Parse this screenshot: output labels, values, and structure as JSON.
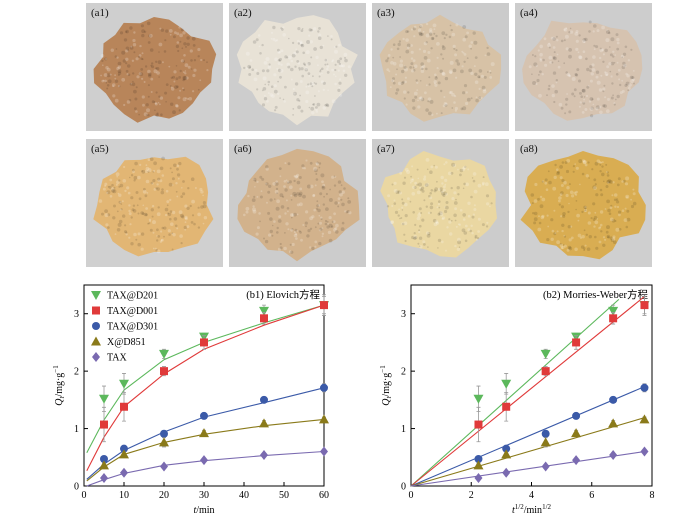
{
  "photos": [
    {
      "label": "(a1)",
      "bg": "#cfcfcf",
      "pile": "#b8855a"
    },
    {
      "label": "(a2)",
      "bg": "#cdcdcd",
      "pile": "#e8e2d6"
    },
    {
      "label": "(a3)",
      "bg": "#cbcbcb",
      "pile": "#d7c2a6"
    },
    {
      "label": "(a4)",
      "bg": "#cdcdcd",
      "pile": "#d6c3b0"
    },
    {
      "label": "(a5)",
      "bg": "#d0d0d0",
      "pile": "#e2b674"
    },
    {
      "label": "(a6)",
      "bg": "#cccccc",
      "pile": "#d2b28c"
    },
    {
      "label": "(a7)",
      "bg": "#cccccc",
      "pile": "#ead7a2"
    },
    {
      "label": "(a8)",
      "bg": "#cfcfcf",
      "pile": "#d9ad52"
    }
  ],
  "chart_data": [
    {
      "type": "line",
      "title": "(b1) Elovich方程",
      "xlabel_italic": "t",
      "xlabel_rest": "/min",
      "ylabel_italic": "Q",
      "ylabel_sub": "t",
      "ylabel_rest": "/mg·g",
      "ylabel_sup": "−1",
      "xlim": [
        0,
        60
      ],
      "ylim": [
        0,
        3.5
      ],
      "xticks": [
        "0",
        "10",
        "20",
        "30",
        "40",
        "50",
        "60"
      ],
      "xtick_values": [
        0,
        10,
        20,
        30,
        40,
        50,
        60
      ],
      "yticks": [
        "0",
        "1",
        "2",
        "3"
      ],
      "ytick_values": [
        0,
        1,
        2,
        3
      ],
      "x": [
        5,
        10,
        20,
        30,
        45,
        60
      ],
      "series": [
        {
          "name": "TAX@D201",
          "marker": "triangle-down",
          "color": "#5cb85c",
          "values": [
            1.52,
            1.78,
            2.3,
            2.6,
            3.05,
            3.15
          ],
          "err": [
            0.22,
            0.18,
            0.08,
            0.06,
            0.1,
            0.18
          ],
          "fit": [
            1.15,
            1.67,
            2.2,
            2.5,
            2.84,
            3.15
          ]
        },
        {
          "name": "TAX@D001",
          "marker": "square",
          "color": "#e03a3a",
          "values": [
            1.07,
            1.38,
            2.0,
            2.5,
            2.92,
            3.15
          ],
          "err": [
            0.3,
            0.25,
            0.08,
            0.12,
            0.1,
            0.15
          ],
          "fit": [
            0.85,
            1.38,
            1.95,
            2.38,
            2.8,
            3.15
          ]
        },
        {
          "name": "TAX@D301",
          "marker": "circle",
          "color": "#3b5aa8",
          "values": [
            0.47,
            0.65,
            0.91,
            1.22,
            1.5,
            1.71
          ],
          "err": [
            0.04,
            0.04,
            0.04,
            0.04,
            0.05,
            0.07
          ],
          "fit": [
            0.38,
            0.62,
            0.94,
            1.2,
            1.45,
            1.71
          ]
        },
        {
          "name": "X@D851",
          "marker": "triangle-up",
          "color": "#8a7a1a",
          "values": [
            0.36,
            0.55,
            0.76,
            0.92,
            1.09,
            1.16
          ],
          "err": [
            0.04,
            0.04,
            0.08,
            0.05,
            0.05,
            0.04
          ],
          "fit": [
            0.33,
            0.55,
            0.76,
            0.9,
            1.05,
            1.16
          ]
        },
        {
          "name": "TAX",
          "marker": "diamond",
          "color": "#7a6ab0",
          "values": [
            0.14,
            0.23,
            0.34,
            0.45,
            0.54,
            0.6
          ],
          "err": [
            0.02,
            0.02,
            0.02,
            0.03,
            0.03,
            0.03
          ],
          "fit": [
            0.11,
            0.22,
            0.36,
            0.44,
            0.53,
            0.6
          ]
        }
      ],
      "legend": "top-left"
    },
    {
      "type": "line",
      "title": "(b2) Morries-Weber方程",
      "xlabel_italic": "t",
      "xlabel_sup1": "1/2",
      "xlabel_rest": "/min",
      "xlabel_sup2": "1/2",
      "ylabel_italic": "Q",
      "ylabel_sub": "t",
      "ylabel_rest": "/mg·g",
      "ylabel_sup": "−1",
      "xlim": [
        0,
        8
      ],
      "ylim": [
        0,
        3.5
      ],
      "xticks": [
        "0",
        "2",
        "4",
        "6",
        "8"
      ],
      "xtick_values": [
        0,
        2,
        4,
        6,
        8
      ],
      "yticks": [
        "0",
        "1",
        "2",
        "3"
      ],
      "ytick_values": [
        0,
        1,
        2,
        3
      ],
      "x": [
        2.24,
        3.16,
        4.47,
        5.48,
        6.71,
        7.75
      ],
      "series": [
        {
          "name": "TAX@D201",
          "marker": "triangle-down",
          "color": "#5cb85c",
          "values": [
            1.52,
            1.78,
            2.3,
            2.6,
            3.05,
            3.15
          ],
          "err": [
            0.22,
            0.18,
            0.08,
            0.06,
            0.1,
            0.18
          ],
          "line": [
            0,
            0,
            6.9,
            3.25
          ]
        },
        {
          "name": "TAX@D001",
          "marker": "square",
          "color": "#e03a3a",
          "values": [
            1.07,
            1.38,
            2.0,
            2.5,
            2.92,
            3.15
          ],
          "err": [
            0.3,
            0.25,
            0.08,
            0.12,
            0.1,
            0.15
          ],
          "line": [
            0,
            0,
            7.75,
            3.3
          ]
        },
        {
          "name": "TAX@D301",
          "marker": "circle",
          "color": "#3b5aa8",
          "values": [
            0.47,
            0.65,
            0.91,
            1.22,
            1.5,
            1.71
          ],
          "err": [
            0.04,
            0.04,
            0.04,
            0.04,
            0.05,
            0.07
          ],
          "line": [
            0,
            0,
            7.75,
            1.73
          ]
        },
        {
          "name": "X@D851",
          "marker": "triangle-up",
          "color": "#8a7a1a",
          "values": [
            0.36,
            0.55,
            0.76,
            0.92,
            1.09,
            1.16
          ],
          "err": [
            0.04,
            0.04,
            0.08,
            0.05,
            0.05,
            0.04
          ],
          "line": [
            0,
            0,
            7.75,
            1.19
          ]
        },
        {
          "name": "TAX",
          "marker": "diamond",
          "color": "#7a6ab0",
          "values": [
            0.14,
            0.23,
            0.34,
            0.45,
            0.54,
            0.6
          ],
          "err": [
            0.02,
            0.02,
            0.02,
            0.03,
            0.03,
            0.03
          ],
          "line": [
            0,
            0,
            7.75,
            0.6
          ]
        }
      ]
    }
  ]
}
